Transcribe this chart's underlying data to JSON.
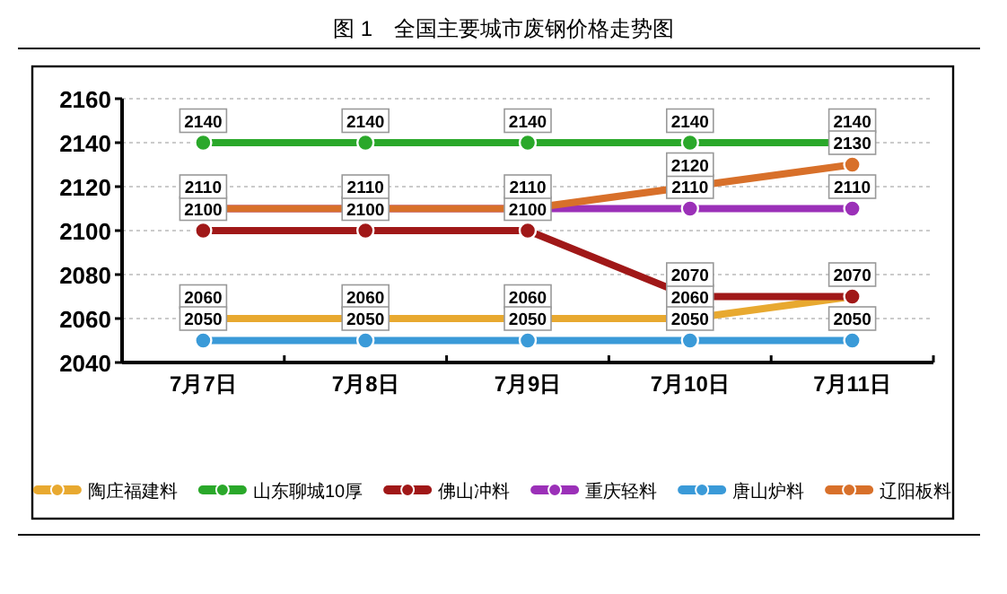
{
  "chart_data": {
    "type": "line",
    "title": "图 1　全国主要城市废钢价格走势图",
    "categories": [
      "7月7日",
      "7月8日",
      "7月9日",
      "7月10日",
      "7月11日"
    ],
    "ylim": [
      2040,
      2160
    ],
    "yticks": [
      2040,
      2060,
      2080,
      2100,
      2120,
      2140,
      2160
    ],
    "grid": "y",
    "legend": "bottom",
    "marker": "circle",
    "line_style": "solid",
    "series": [
      {
        "name": "陶庄福建料",
        "color": "#e8a930",
        "values": [
          2060,
          2060,
          2060,
          2060,
          2070
        ],
        "value_labels": [
          "2060",
          "2060",
          "2060",
          "2060",
          null
        ]
      },
      {
        "name": "山东聊城10厚",
        "color": "#2aa82a",
        "values": [
          2140,
          2140,
          2140,
          2140,
          2140
        ],
        "value_labels": [
          "2140",
          "2140",
          "2140",
          "2140",
          "2140"
        ]
      },
      {
        "name": "佛山冲料",
        "color": "#a01818",
        "values": [
          2100,
          2100,
          2100,
          2070,
          2070
        ],
        "value_labels": [
          "2100",
          "2100",
          "2100",
          "2070",
          "2070"
        ]
      },
      {
        "name": "重庆轻料",
        "color": "#9b30b8",
        "values": [
          2110,
          2110,
          2110,
          2110,
          2110
        ],
        "value_labels": [
          null,
          null,
          null,
          "2110",
          "2110"
        ]
      },
      {
        "name": "唐山炉料",
        "color": "#3a9ad8",
        "values": [
          2050,
          2050,
          2050,
          2050,
          2050
        ],
        "value_labels": [
          "2050",
          "2050",
          "2050",
          "2050",
          "2050"
        ]
      },
      {
        "name": "辽阳板料",
        "color": "#d8702a",
        "values": [
          2110,
          2110,
          2110,
          2120,
          2130
        ],
        "value_labels": [
          "2110",
          "2110",
          "2110",
          "2120",
          "2130"
        ]
      }
    ]
  }
}
